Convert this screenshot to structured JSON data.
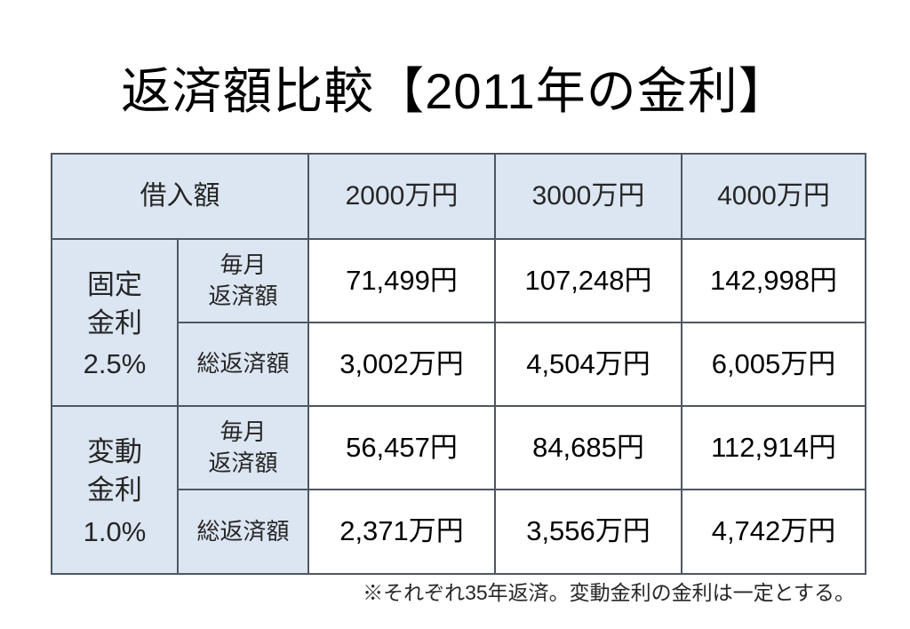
{
  "title": "返済額比較【2011年の金利】",
  "table": {
    "header": {
      "loan_amount_label": "借入額",
      "columns": [
        "2000万円",
        "3000万円",
        "4000万円"
      ]
    },
    "sections": [
      {
        "group": {
          "name_lines": [
            "固定",
            "金利"
          ],
          "rate": "2.5%"
        },
        "rows": [
          {
            "label_lines": [
              "毎月",
              "返済額"
            ],
            "values": [
              "71,499円",
              "107,248円",
              "142,998円"
            ]
          },
          {
            "label_lines": [
              "総返済額"
            ],
            "values": [
              "3,002万円",
              "4,504万円",
              "6,005万円"
            ]
          }
        ]
      },
      {
        "group": {
          "name_lines": [
            "変動",
            "金利"
          ],
          "rate": "1.0%"
        },
        "rows": [
          {
            "label_lines": [
              "毎月",
              "返済額"
            ],
            "values": [
              "56,457円",
              "84,685円",
              "112,914円"
            ]
          },
          {
            "label_lines": [
              "総返済額"
            ],
            "values": [
              "2,371万円",
              "3,556万円",
              "4,742万円"
            ]
          }
        ]
      }
    ]
  },
  "footnote": "※それぞれ35年返済。変動金利の金利は一定とする。",
  "colors": {
    "background": "#ffffff",
    "header_cell_bg": "#dce6f2",
    "grid_line": "#4d5761",
    "title_text": "#000000",
    "label_text": "#262626",
    "value_text": "#000000"
  }
}
